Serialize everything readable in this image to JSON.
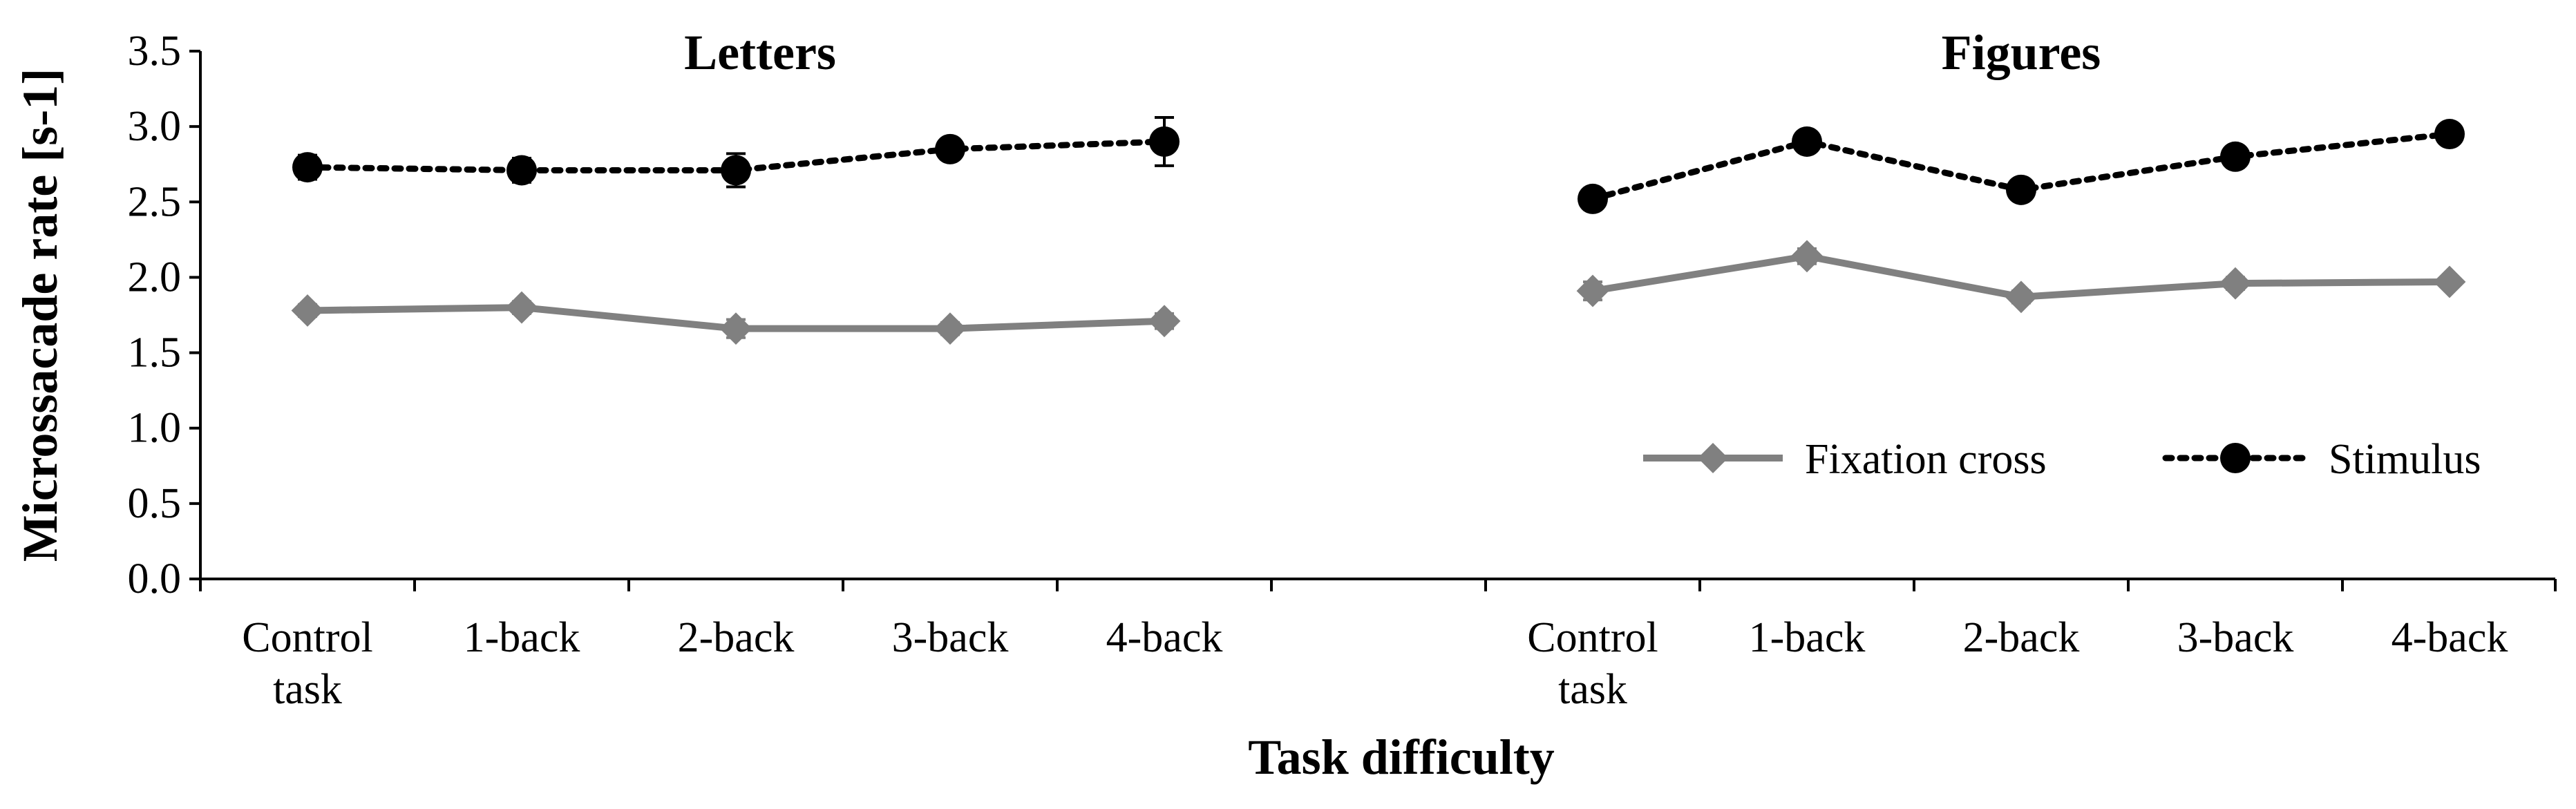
{
  "chart_data": {
    "type": "line",
    "ylabel": "Microssacade rate [s-1]",
    "xlabel": "Task difficulty",
    "ylim": [
      0,
      3.5
    ],
    "yticks": [
      "0.0",
      "0.5",
      "1.0",
      "1.5",
      "2.0",
      "2.5",
      "3.0",
      "3.5"
    ],
    "legend_position": "bottom-right",
    "colors": {
      "fixation": "#808080",
      "stimulus": "#000000"
    },
    "panels": [
      {
        "title": "Letters",
        "categories": [
          [
            "Control",
            "task"
          ],
          [
            "1-back"
          ],
          [
            "2-back"
          ],
          [
            "3-back"
          ],
          [
            "4-back"
          ]
        ],
        "series": [
          {
            "name": "Fixation cross",
            "style": "solid-diamond",
            "values": [
              1.78,
              1.8,
              1.66,
              1.66,
              1.71
            ],
            "errors": [
              0.04,
              0.04,
              0.06,
              0.04,
              0.05
            ]
          },
          {
            "name": "Stimulus",
            "style": "dotted-circle",
            "values": [
              2.73,
              2.71,
              2.71,
              2.85,
              2.9
            ],
            "errors": [
              0.08,
              0.08,
              0.11,
              0.06,
              0.16
            ]
          }
        ]
      },
      {
        "title": "Figures",
        "categories": [
          [
            "Control",
            "task"
          ],
          [
            "1-back"
          ],
          [
            "2-back"
          ],
          [
            "3-back"
          ],
          [
            "4-back"
          ]
        ],
        "series": [
          {
            "name": "Fixation cross",
            "style": "solid-diamond",
            "values": [
              1.91,
              2.14,
              1.87,
              1.96,
              1.97
            ],
            "errors": [
              0.06,
              0.05,
              0.04,
              0.04,
              0.03
            ]
          },
          {
            "name": "Stimulus",
            "style": "dotted-circle",
            "values": [
              2.52,
              2.9,
              2.58,
              2.8,
              2.95
            ],
            "errors": [
              0.07,
              0.06,
              0.04,
              0.07,
              0.04
            ]
          }
        ]
      }
    ],
    "legend": [
      {
        "name": "Fixation cross",
        "style": "solid-diamond"
      },
      {
        "name": "Stimulus",
        "style": "dotted-circle"
      }
    ]
  }
}
